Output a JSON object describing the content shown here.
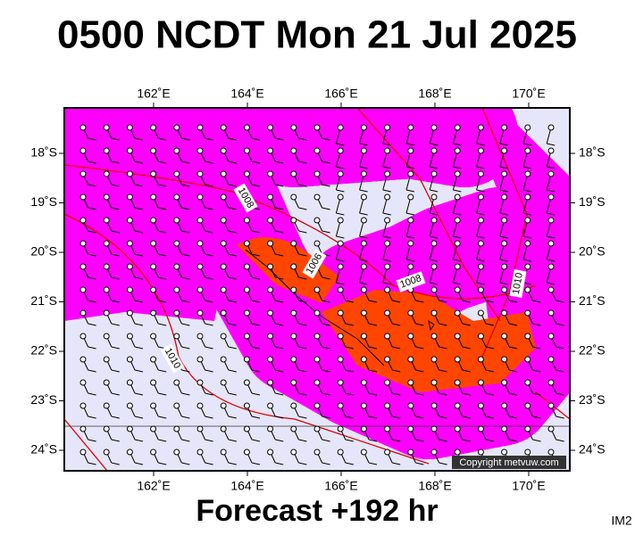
{
  "header": {
    "title": "0500 NCDT Mon 21 Jul 2025"
  },
  "map": {
    "longitude_labels": [
      "162˚E",
      "164˚E",
      "166˚E",
      "168˚E",
      "170˚E"
    ],
    "latitude_labels": [
      "18˚S",
      "19˚S",
      "20˚S",
      "21˚S",
      "22˚S",
      "23˚S",
      "24˚S"
    ],
    "isobar_labels": [
      "1008",
      "1006",
      "1008",
      "1010",
      "1010"
    ],
    "copyright": "Copyright metvuw.com"
  },
  "footer": {
    "forecast": "Forecast +192 hr",
    "code": "IM2"
  }
}
